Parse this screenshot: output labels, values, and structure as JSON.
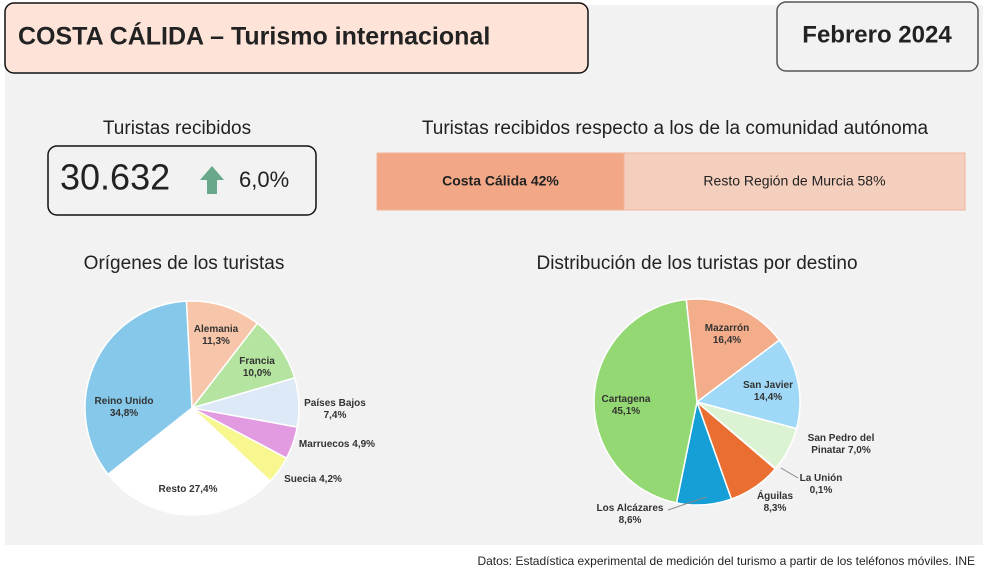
{
  "header": {
    "title": "COSTA CÁLIDA – Turismo internacional",
    "period": "Febrero 2024"
  },
  "kpi": {
    "title": "Turistas recibidos",
    "value": "30.632",
    "change": "6,0%"
  },
  "chart_data": [
    {
      "type": "bar",
      "orientation": "horizontal",
      "stacked": true,
      "title": "Turistas recibidos respecto a los de la comunidad autónoma",
      "xlim": [
        0,
        100
      ],
      "series": [
        {
          "name": "Costa Cálida",
          "color": "#f2a886",
          "values": [
            42
          ],
          "value_labels": [
            "42%"
          ]
        },
        {
          "name": "Resto Región de Murcia",
          "color": "#f5cfbd",
          "values": [
            58
          ],
          "value_labels": [
            "58%"
          ]
        }
      ]
    },
    {
      "type": "pie",
      "title": "Orígenes de los turistas",
      "categories": [
        "Alemania",
        "Francia",
        "Países Bajos",
        "Marruecos",
        "Suecia",
        "Resto",
        "Reino Unido"
      ],
      "values": [
        11.3,
        10.0,
        7.4,
        4.9,
        4.2,
        27.4,
        34.8
      ],
      "value_labels": [
        "11,3%",
        "10,0%",
        "7,4%",
        "4,9%",
        "4,2%",
        "27,4%",
        "34,8%"
      ],
      "colors": [
        "#f7c6aa",
        "#b4e4a0",
        "#dde9f7",
        "#e29be0",
        "#f8f68e",
        "#ffffff",
        "#86c8ea"
      ]
    },
    {
      "type": "pie",
      "title": "Distribución de los turistas por destino",
      "categories": [
        "Mazarrón",
        "San Javier",
        "San Pedro del Pinatar",
        "La Unión",
        "Águilas",
        "Los Alcázares",
        "Cartagena"
      ],
      "values": [
        16.4,
        14.4,
        7.0,
        0.1,
        8.3,
        8.6,
        45.1
      ],
      "value_labels": [
        "16,4%",
        "14,4%",
        "7,0%",
        "0,1%",
        "8,3%",
        "8,6%",
        "45,1%"
      ],
      "colors": [
        "#f4ad8a",
        "#9fd9f7",
        "#dbf3d3",
        "#f4ad8a",
        "#ea6e32",
        "#169fd6",
        "#93d872"
      ]
    }
  ],
  "footer": {
    "source": "Datos: Estadística experimental de medición del turismo a partir de los teléfonos móviles. INE"
  }
}
